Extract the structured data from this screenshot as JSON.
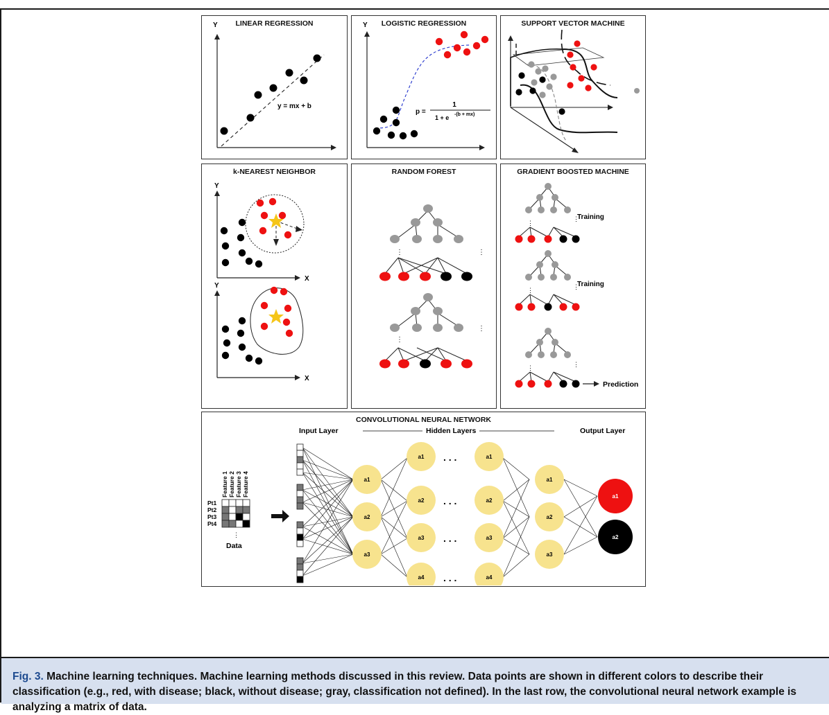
{
  "panels": {
    "linear_regression": {
      "title": "LINEAR REGRESSION",
      "y_label": "Y",
      "equation": "y = mx + b"
    },
    "logistic_regression": {
      "title": "LOGISTIC REGRESSION",
      "y_label": "Y",
      "eq_left": "p =",
      "eq_num": "1",
      "eq_den": "1 + e",
      "eq_exp": "-(b + mx)"
    },
    "svm": {
      "title": "SUPPORT VECTOR MACHINE"
    },
    "knn": {
      "title": "k-NEAREST NEIGHBOR",
      "y_label": "Y",
      "x_label": "X"
    },
    "random_forest": {
      "title": "RANDOM FOREST"
    },
    "gbm": {
      "title": "GRADIENT BOOSTED MACHINE",
      "step_1": "Training",
      "step_2": "Training",
      "step_3": "Prediction"
    },
    "cnn": {
      "title": "CONVOLUTIONAL NEURAL NETWORK",
      "input_layer": "Input Layer",
      "hidden_layers": "Hidden Layers",
      "output_layer": "Output Layer",
      "features": [
        "Feature 1",
        "Feature 2",
        "Feature 3",
        "Feature 4"
      ],
      "rows": [
        "Pt1",
        "Pt2",
        "Pt3",
        "Pt4"
      ],
      "data_label": "Data",
      "node_labels": [
        "a1",
        "a2",
        "a3",
        "a4"
      ],
      "ellipsis": ". . ."
    }
  },
  "colors": {
    "positive": "#ee1111",
    "negative": "#000000",
    "undefined": "#999999",
    "neuron": "#f7e38e",
    "star": "#f5c518",
    "caption_bg": "#d7e0ef",
    "caption_label": "#1d4a8f"
  },
  "caption": {
    "label": "Fig. 3.",
    "text": "Machine learning techniques. Machine learning methods discussed in this review. Data points are shown in different colors to describe their classification (e.g., red, with disease; black, without disease; gray, classification not defined). In the last row, the convolutional neural network example is analyzing a matrix of data."
  }
}
